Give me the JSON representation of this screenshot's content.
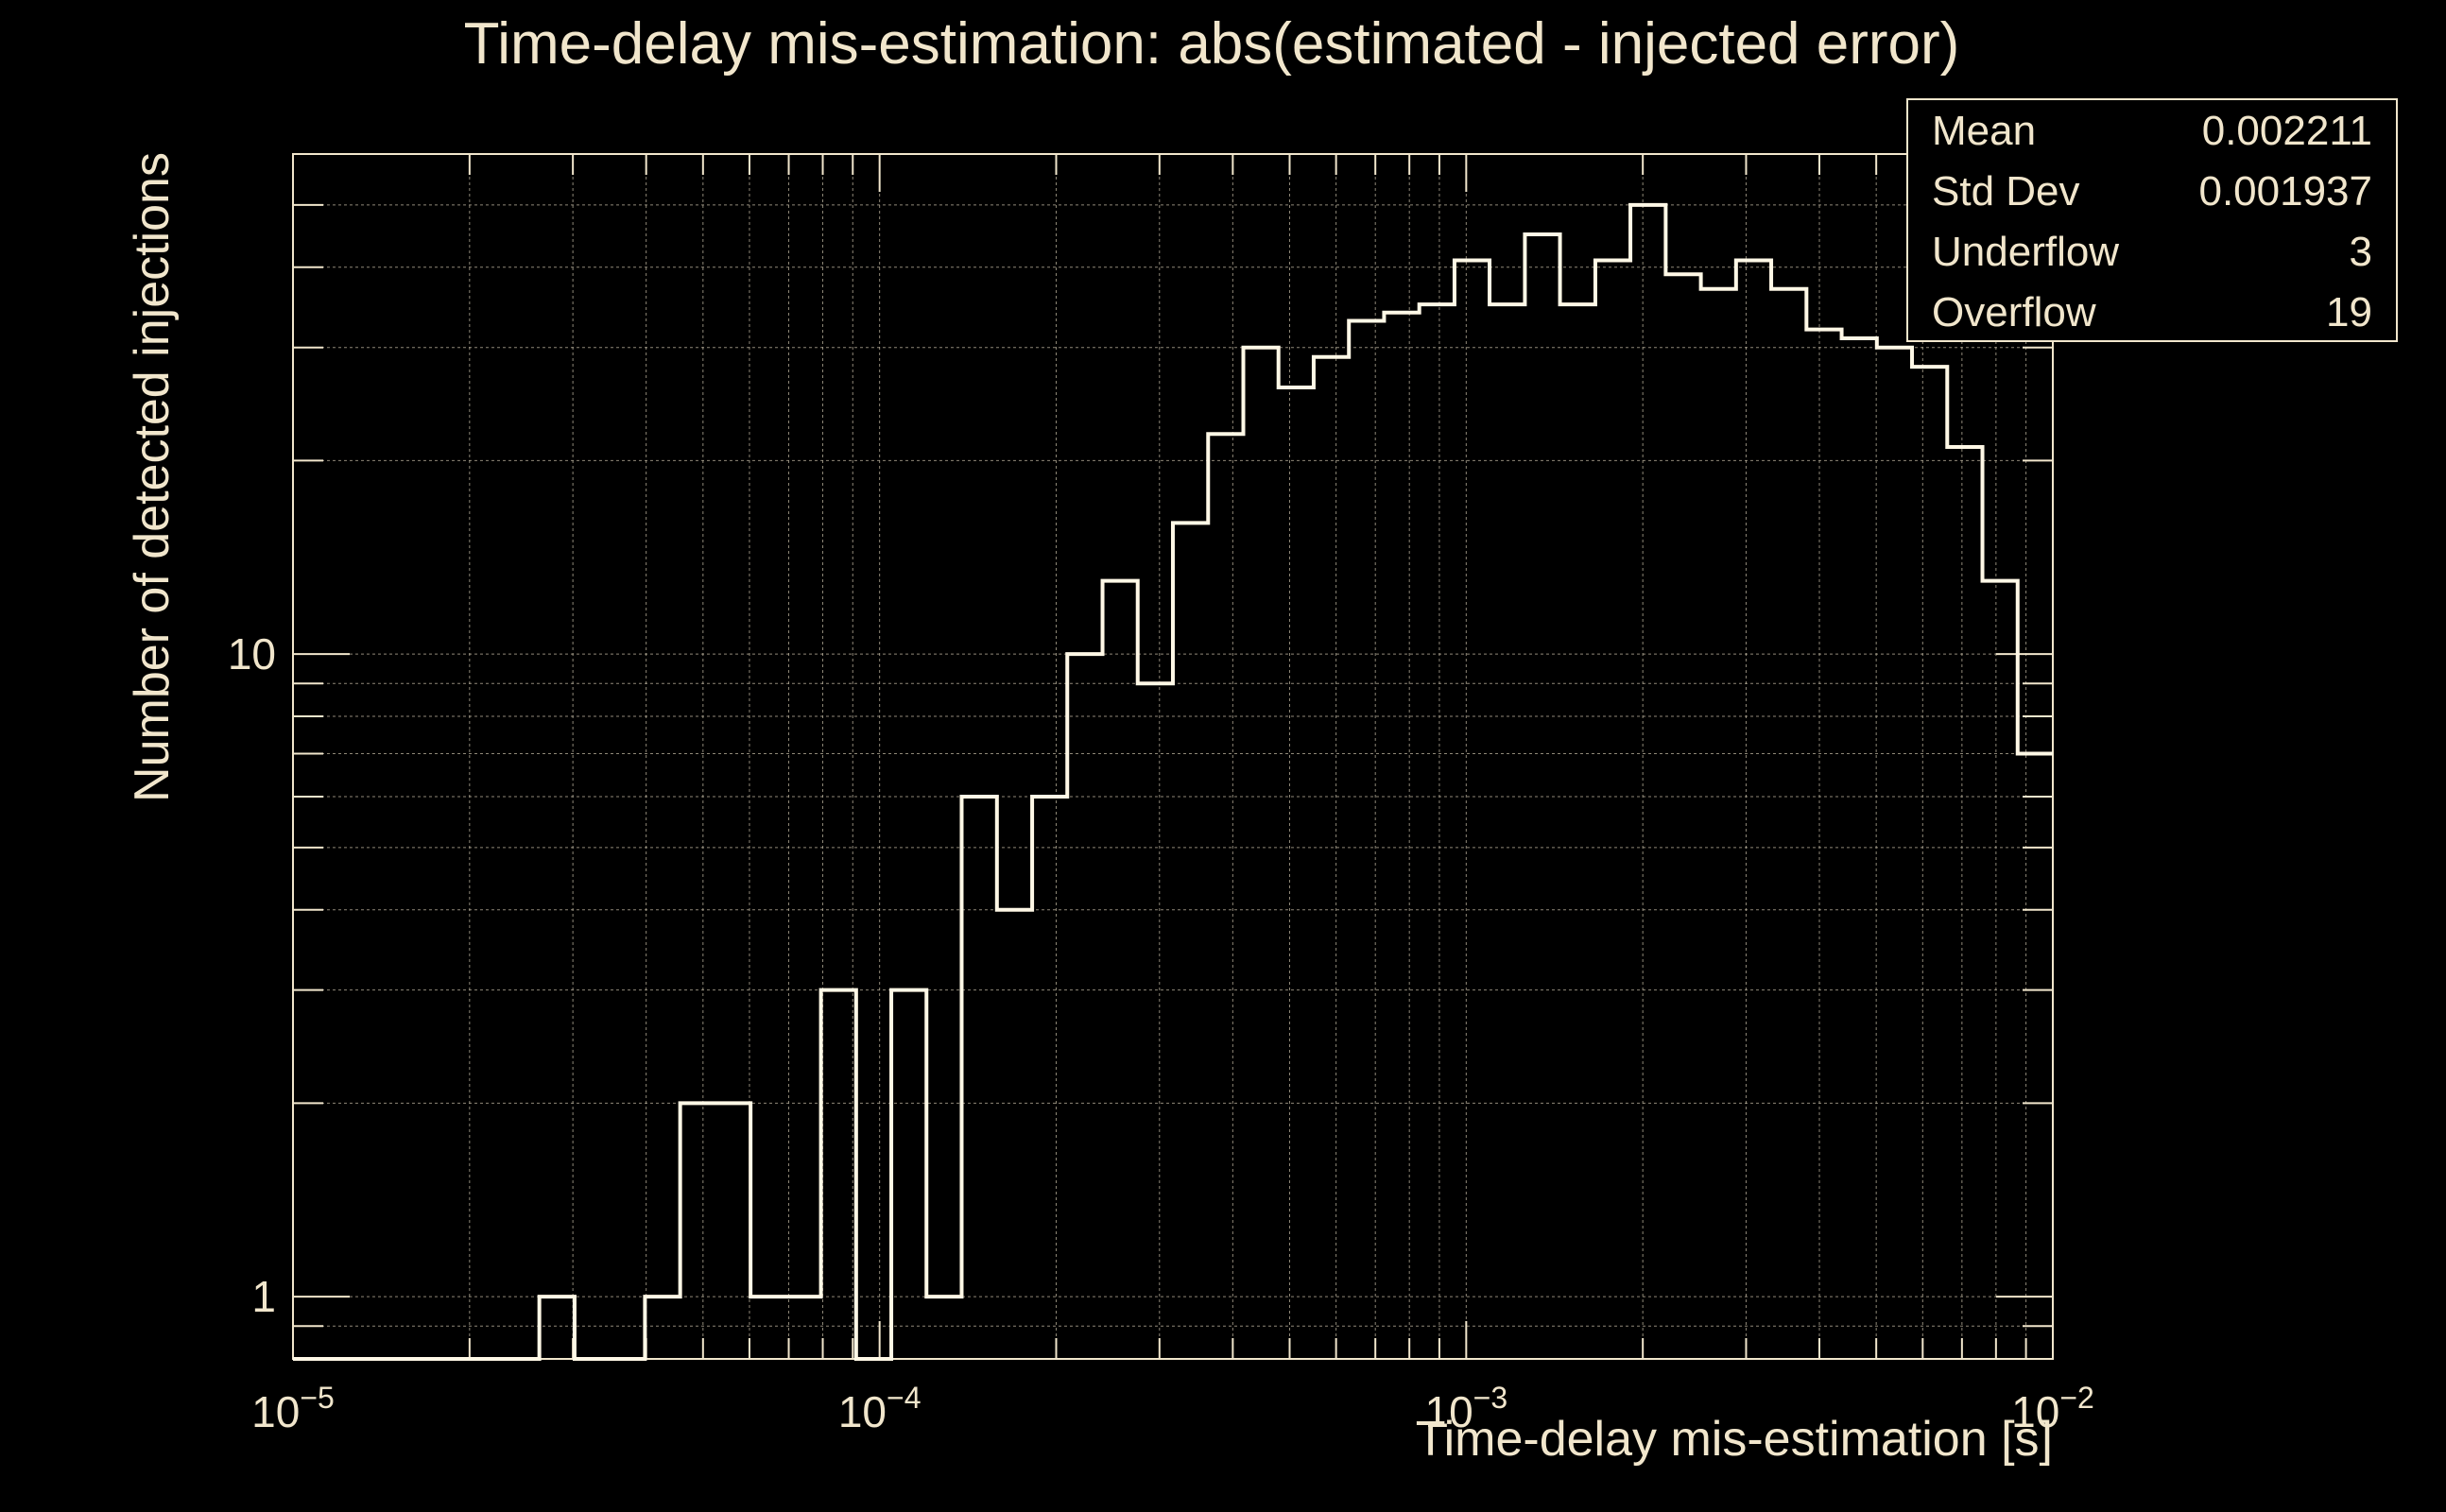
{
  "colors": {
    "background": "#000000",
    "foreground": "#f1e6cc",
    "histogram_line": "#fff8e6",
    "grid": "#bfb6a0"
  },
  "chart_data": {
    "type": "histogram",
    "title": "Time-delay mis-estimation: abs(estimated - injected error)",
    "xlabel": "Time-delay mis-estimation [s]",
    "ylabel": "Number of detected injections",
    "x_scale": "log",
    "y_scale": "log",
    "xlim": [
      1e-05,
      0.01
    ],
    "ylim": [
      0.8,
      60
    ],
    "grid": true,
    "x_ticks": [
      {
        "value": 1e-05,
        "base": "10",
        "exp": "−5"
      },
      {
        "value": 0.0001,
        "base": "10",
        "exp": "−4"
      },
      {
        "value": 0.001,
        "base": "10",
        "exp": "−3"
      },
      {
        "value": 0.01,
        "base": "10",
        "exp": "−2"
      }
    ],
    "y_ticks": [
      {
        "value": 1,
        "label": "1"
      },
      {
        "value": 10,
        "label": "10"
      }
    ],
    "bin_edges": [
      1e-05,
      1.148e-05,
      1.318e-05,
      1.514e-05,
      1.738e-05,
      1.995e-05,
      2.291e-05,
      2.63e-05,
      3.02e-05,
      3.467e-05,
      3.981e-05,
      4.571e-05,
      5.248e-05,
      6.026e-05,
      6.918e-05,
      7.943e-05,
      9.12e-05,
      0.0001047,
      0.0001202,
      0.000138,
      0.0001585,
      0.000182,
      0.0002089,
      0.0002399,
      0.0002754,
      0.0003162,
      0.0003631,
      0.0004169,
      0.0004786,
      0.0005495,
      0.000631,
      0.0007244,
      0.0008318,
      0.000955,
      0.001096,
      0.001259,
      0.001445,
      0.00166,
      0.001905,
      0.002188,
      0.002512,
      0.002884,
      0.003311,
      0.003802,
      0.004365,
      0.005012,
      0.005754,
      0.006607,
      0.007586,
      0.00871,
      0.01
    ],
    "counts": [
      0,
      0,
      0,
      0,
      0,
      0,
      0,
      1,
      0,
      0,
      1,
      2,
      2,
      1,
      1,
      3,
      0,
      3,
      1,
      6,
      4,
      6,
      10,
      13,
      9,
      16,
      22,
      30,
      26,
      29,
      33,
      34,
      35,
      41,
      35,
      45,
      35,
      41,
      50,
      39,
      37,
      41,
      37,
      32,
      31,
      30,
      28,
      21,
      13,
      7
    ],
    "stats": {
      "labels": [
        "Mean",
        "Std Dev",
        "Underflow",
        "Overflow"
      ],
      "values": [
        "0.002211",
        "0.001937",
        "3",
        "19"
      ]
    }
  }
}
